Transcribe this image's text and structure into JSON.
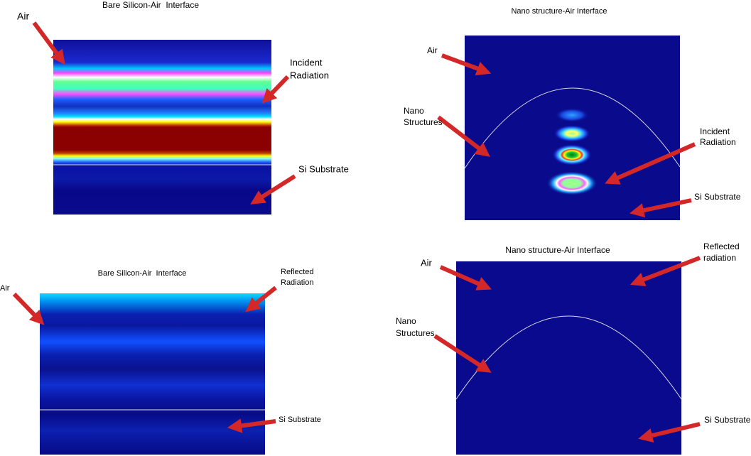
{
  "panels": [
    {
      "title": "Bare Silicon-Air  Interface",
      "labels": [
        {
          "lines": [
            "Air"
          ]
        },
        {
          "lines": [
            "Incident",
            "Radiation"
          ]
        },
        {
          "lines": [
            "Si Substrate"
          ]
        }
      ]
    },
    {
      "title": "Nano structure-Air Interface",
      "labels": [
        {
          "lines": [
            "Air"
          ]
        },
        {
          "lines": [
            "Nano",
            "Structures"
          ]
        },
        {
          "lines": [
            "Incident",
            "Radiation"
          ]
        },
        {
          "lines": [
            "Si Substrate"
          ]
        }
      ]
    },
    {
      "title": "Bare Silicon-Air  Interface",
      "labels": [
        {
          "lines": [
            "Air"
          ]
        },
        {
          "lines": [
            "Reflected",
            "Radiation"
          ]
        },
        {
          "lines": [
            "Si Substrate"
          ]
        }
      ]
    },
    {
      "title": "Nano structure-Air Interface",
      "labels": [
        {
          "lines": [
            "Air"
          ]
        },
        {
          "lines": [
            "Reflected",
            "radiation"
          ]
        },
        {
          "lines": [
            "Nano",
            "Structures"
          ]
        },
        {
          "lines": [
            "Si Substrate"
          ]
        }
      ]
    }
  ]
}
